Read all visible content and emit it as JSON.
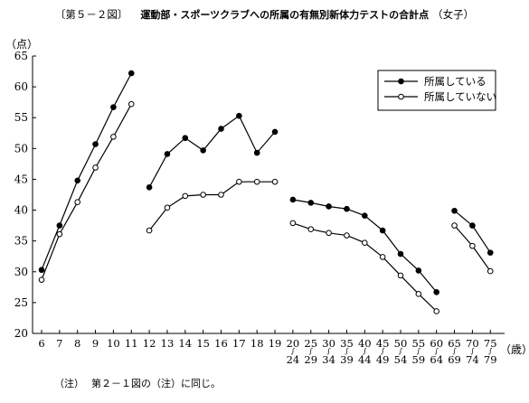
{
  "title": {
    "fig_no": "〔第５－２図〕",
    "main": "運動部・スポーツクラブへの所属の有無別新体力テストの合計点",
    "sub": "（女子）"
  },
  "y_unit": "（点）",
  "x_unit": "（歳）",
  "note": {
    "label": "（注）",
    "text": "第２－１図の（注）に同じ。"
  },
  "chart_data": {
    "type": "line",
    "title": "運動部・スポーツクラブへの所属の有無別新体力テストの合計点（女子）",
    "ylabel": "（点）",
    "xlabel": "（歳）",
    "ylim": [
      20,
      65
    ],
    "yticks": [
      20,
      25,
      30,
      35,
      40,
      45,
      50,
      55,
      60,
      65
    ],
    "grid": false,
    "legend_position": "top-right",
    "categories": [
      {
        "top": "6",
        "bottom": ""
      },
      {
        "top": "7",
        "bottom": ""
      },
      {
        "top": "8",
        "bottom": ""
      },
      {
        "top": "9",
        "bottom": ""
      },
      {
        "top": "10",
        "bottom": ""
      },
      {
        "top": "11",
        "bottom": ""
      },
      {
        "top": "12",
        "bottom": ""
      },
      {
        "top": "13",
        "bottom": ""
      },
      {
        "top": "14",
        "bottom": ""
      },
      {
        "top": "15",
        "bottom": ""
      },
      {
        "top": "16",
        "bottom": ""
      },
      {
        "top": "17",
        "bottom": ""
      },
      {
        "top": "18",
        "bottom": ""
      },
      {
        "top": "19",
        "bottom": ""
      },
      {
        "top": "20",
        "bottom": "24"
      },
      {
        "top": "25",
        "bottom": "29"
      },
      {
        "top": "30",
        "bottom": "34"
      },
      {
        "top": "35",
        "bottom": "39"
      },
      {
        "top": "40",
        "bottom": "44"
      },
      {
        "top": "45",
        "bottom": "49"
      },
      {
        "top": "50",
        "bottom": "54"
      },
      {
        "top": "55",
        "bottom": "59"
      },
      {
        "top": "60",
        "bottom": "64"
      },
      {
        "top": "65",
        "bottom": "69"
      },
      {
        "top": "70",
        "bottom": "74"
      },
      {
        "top": "75",
        "bottom": "79"
      }
    ],
    "segments": [
      [
        0,
        5
      ],
      [
        6,
        13
      ],
      [
        14,
        22
      ],
      [
        23,
        25
      ]
    ],
    "series": [
      {
        "name": "所属している",
        "marker": "filled",
        "values": [
          30.3,
          37.5,
          44.8,
          50.7,
          56.7,
          62.2,
          43.7,
          49.1,
          51.7,
          49.7,
          53.2,
          55.3,
          49.3,
          52.7,
          41.7,
          41.2,
          40.6,
          40.2,
          39.1,
          36.7,
          32.9,
          30.2,
          26.7,
          39.9,
          37.5,
          33.1
        ]
      },
      {
        "name": "所属していない",
        "marker": "open",
        "values": [
          28.7,
          36.1,
          41.3,
          46.9,
          51.9,
          57.2,
          36.7,
          40.4,
          42.3,
          42.5,
          42.5,
          44.6,
          44.6,
          44.6,
          37.9,
          36.9,
          36.3,
          35.9,
          34.7,
          32.4,
          29.4,
          26.4,
          23.6,
          37.5,
          34.2,
          30.1
        ]
      }
    ]
  }
}
